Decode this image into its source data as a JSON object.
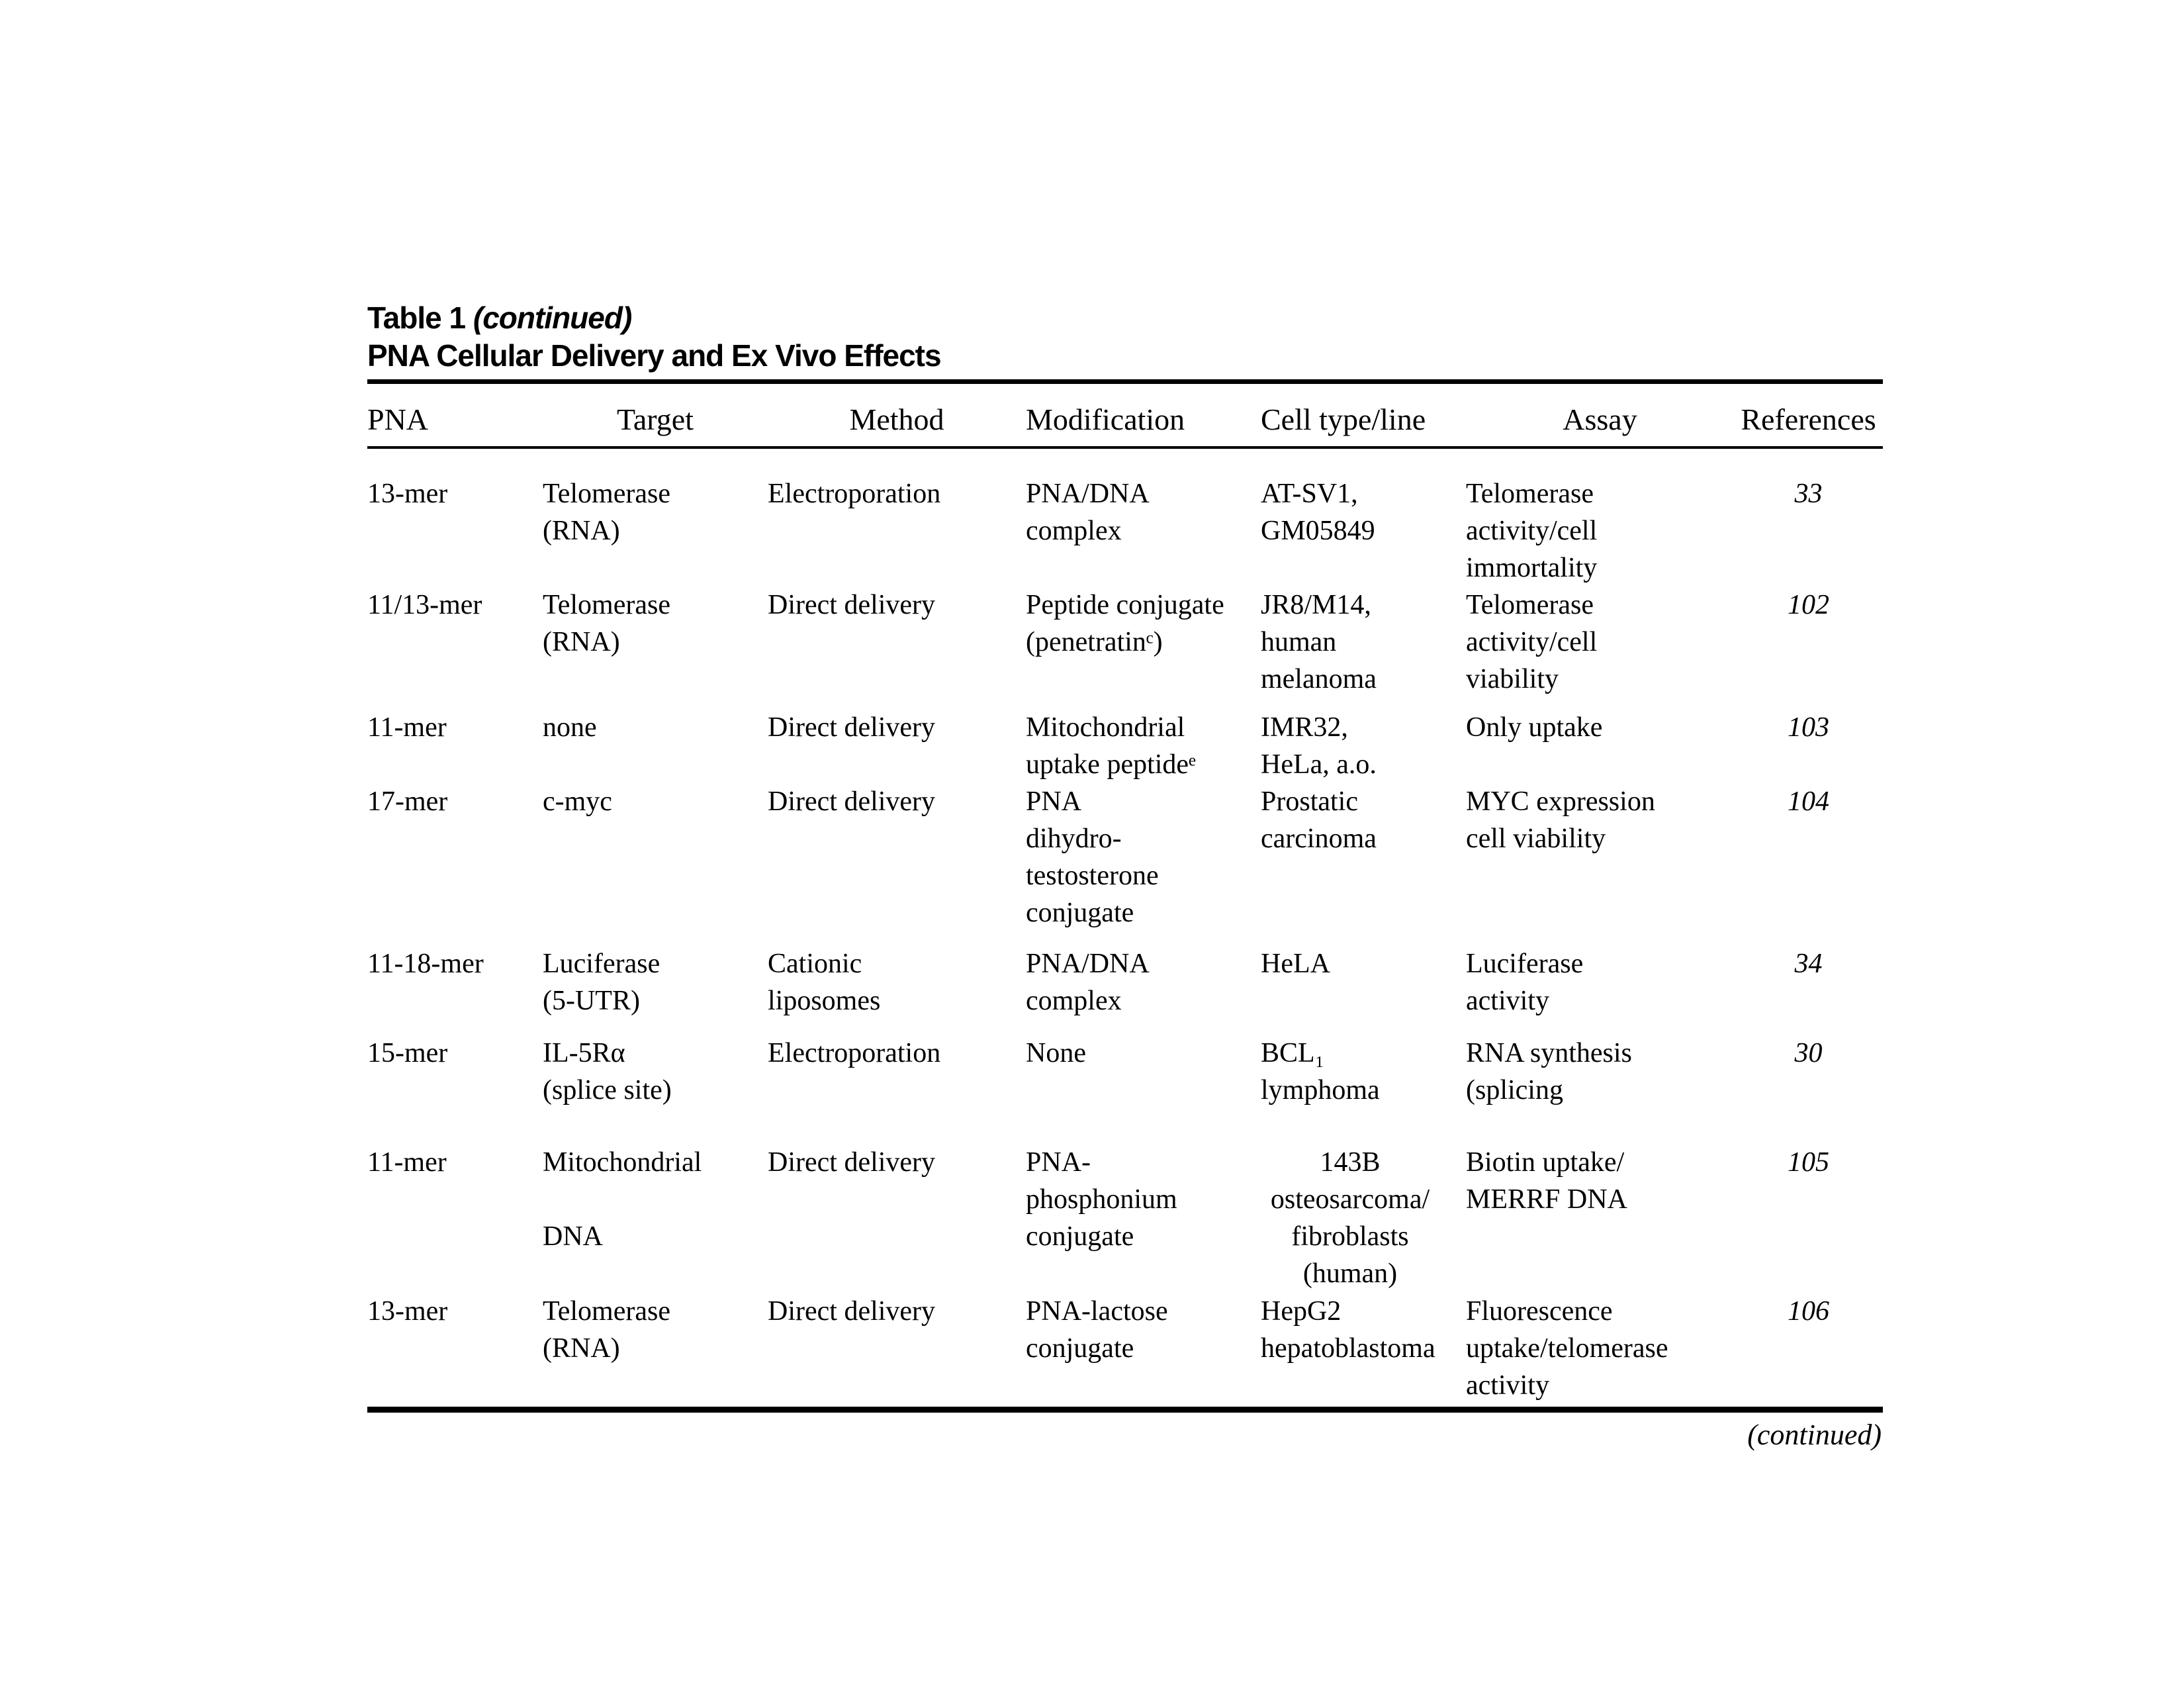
{
  "page": {
    "title_line1_prefix": "Table 1 ",
    "title_line1_italic": "(continued)",
    "title_line2": "PNA Cellular Delivery and Ex Vivo Effects",
    "footer_continued": "(continued)"
  },
  "table": {
    "headers": [
      "PNA",
      "Target",
      "Method",
      "Modification",
      "Cell type/line",
      "Assay",
      "References"
    ],
    "rows": [
      {
        "pna": "13-mer",
        "target": "Telomerase\n(RNA)",
        "method": "Electroporation",
        "modification": "PNA/DNA\ncomplex",
        "cell_type": "AT-SV1,\nGM05849",
        "assay": "Telomerase\nactivity/cell\nimmortality",
        "references": "33"
      },
      {
        "pna": "11/13-mer",
        "target": "Telomerase\n(RNA)",
        "method": "Direct delivery",
        "modification": "Peptide conjugate\n(penetratinᶜ)",
        "cell_type": "JR8/M14,\nhuman\nmelanoma",
        "assay": "Telomerase\nactivity/cell\nviability",
        "references": "102"
      },
      {
        "pna": "11-mer",
        "target": "none",
        "method": "Direct delivery",
        "modification": "Mitochondrial\nuptake peptideᵉ",
        "cell_type": "IMR32,\nHeLa, a.o.",
        "assay": "Only uptake",
        "references": "103"
      },
      {
        "pna": "17-mer",
        "target": "c-myc",
        "method": "Direct delivery",
        "modification": "PNA\ndihydro-\ntestosterone\nconjugate",
        "cell_type": "Prostatic\ncarcinoma",
        "assay": "MYC expression\ncell viability",
        "references": "104"
      },
      {
        "pna": "11-18-mer",
        "target": "Luciferase\n(5-UTR)",
        "method": "Cationic\nliposomes",
        "modification": "PNA/DNA\ncomplex",
        "cell_type": "HeLA",
        "assay": "Luciferase\nactivity",
        "references": "34"
      },
      {
        "pna": "15-mer",
        "target": "IL-5Rα\n(splice site)",
        "method": "Electroporation",
        "modification": "None",
        "cell_type": "BCL₁\nlymphoma",
        "assay": "RNA synthesis\n(splicing",
        "references": "30"
      },
      {
        "pna": "11-mer",
        "target": "Mitochondrial\n\nDNA",
        "method": "Direct delivery",
        "modification": "PNA-\nphosphonium\nconjugate",
        "cell_type": "143B\nosteosarcoma/\nfibroblasts\n(human)",
        "assay": "Biotin uptake/\nMERRF DNA",
        "references": "105"
      },
      {
        "pna": "13-mer",
        "target": "Telomerase\n(RNA)",
        "method": "Direct delivery",
        "modification": "PNA-lactose\nconjugate",
        "cell_type": "HepG2\nhepatoblastoma",
        "assay": "Fluorescence\nuptake/telomerase\nactivity",
        "references": "106"
      }
    ]
  }
}
